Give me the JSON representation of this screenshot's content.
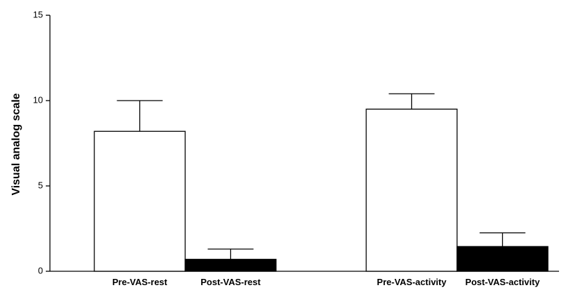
{
  "chart_data": {
    "type": "bar",
    "categories": [
      "Pre-VAS-rest",
      "Post-VAS-rest",
      "Pre-VAS-activity",
      "Post-VAS-activity"
    ],
    "values": [
      8.2,
      0.7,
      9.5,
      1.45
    ],
    "error_upper": [
      10.0,
      1.3,
      10.4,
      2.25
    ],
    "bar_fills": [
      "#ffffff",
      "#000000",
      "#ffffff",
      "#000000"
    ],
    "ylabel": "Visual analog scale",
    "ylim": [
      0,
      15
    ],
    "yticks": [
      0,
      5,
      10,
      15
    ],
    "grid": false,
    "legend": "none"
  }
}
